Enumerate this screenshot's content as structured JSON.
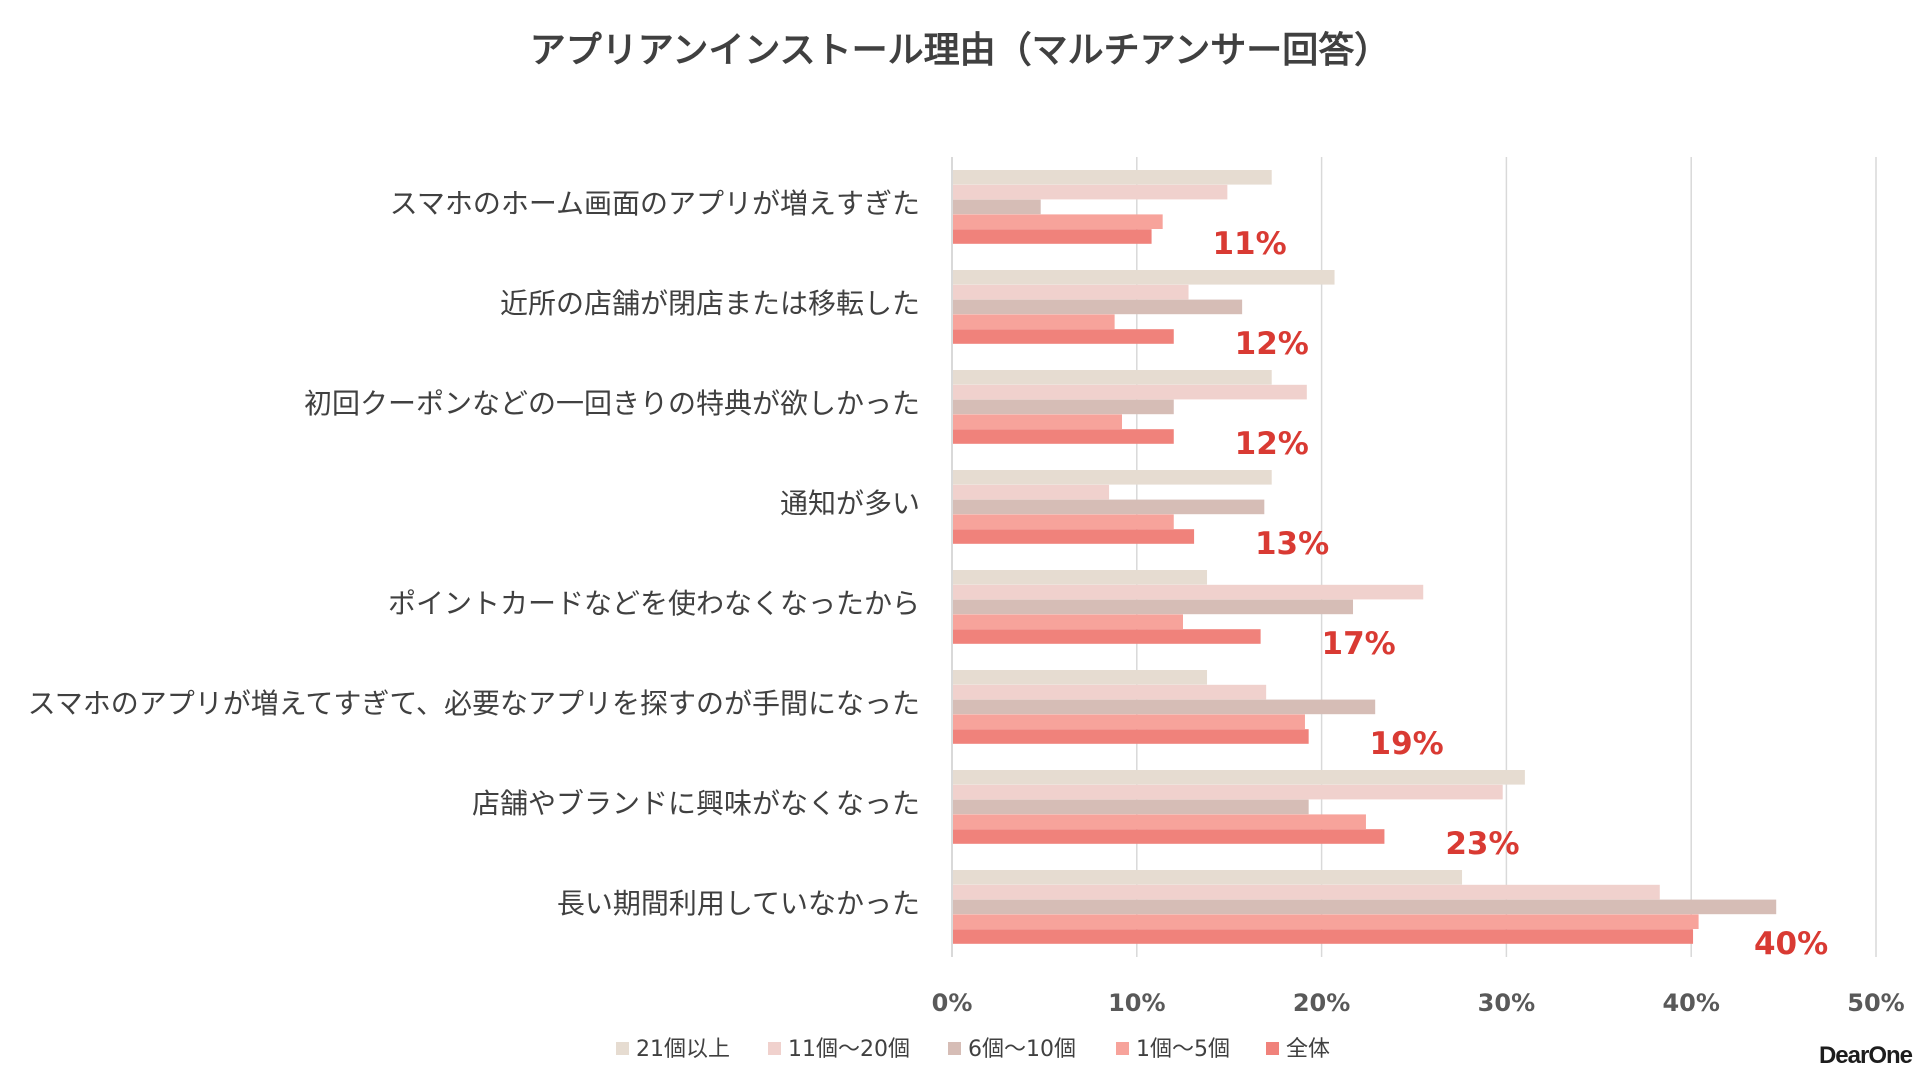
{
  "chart_data": {
    "type": "bar",
    "orientation": "horizontal",
    "title": "アプリアンインストール理由（マルチアンサー回答）",
    "categories": [
      "スマホのホーム画面のアプリが増えすぎた",
      "近所の店舗が閉店または移転した",
      "初回クーポンなどの一回きりの特典が欲しかった",
      "通知が多い",
      "ポイントカードなどを使わなくなったから",
      "スマホのアプリが増えてすぎて、必要なアプリを探すのが手間になった",
      "店舗やブランドに興味がなくなった",
      "長い期間利用していなかった"
    ],
    "series": [
      {
        "name": "21個以上",
        "color": "#e6dcd1",
        "values": [
          17.3,
          20.7,
          17.3,
          17.3,
          13.8,
          13.8,
          31.0,
          27.6
        ]
      },
      {
        "name": "11個～20個",
        "color": "#f0d1cd",
        "values": [
          14.9,
          12.8,
          19.2,
          8.5,
          25.5,
          17.0,
          29.8,
          38.3
        ]
      },
      {
        "name": "6個～10個",
        "color": "#d6bdb6",
        "values": [
          4.8,
          15.7,
          12.0,
          16.9,
          21.7,
          22.9,
          19.3,
          44.6
        ]
      },
      {
        "name": "1個～5個",
        "color": "#f7a39b",
        "values": [
          11.4,
          8.8,
          9.2,
          12.0,
          12.5,
          19.1,
          22.4,
          40.4
        ]
      },
      {
        "name": "全体",
        "color": "#f0827b",
        "values": [
          10.8,
          12.0,
          12.0,
          13.1,
          16.7,
          19.3,
          23.4,
          40.1
        ]
      }
    ],
    "data_labels": [
      "11%",
      "12%",
      "12%",
      "13%",
      "17%",
      "19%",
      "23%",
      "40%"
    ],
    "xlim": [
      0,
      50
    ],
    "x_ticks": [
      "0%",
      "10%",
      "20%",
      "30%",
      "40%",
      "50%"
    ],
    "grid": true,
    "legend_position": "bottom",
    "colors": {
      "label_accent": "#d93a33",
      "grid": "#d9d9d9",
      "text": "#404040",
      "tick": "#595959"
    }
  },
  "brand": {
    "logo_text": "DearOne"
  }
}
